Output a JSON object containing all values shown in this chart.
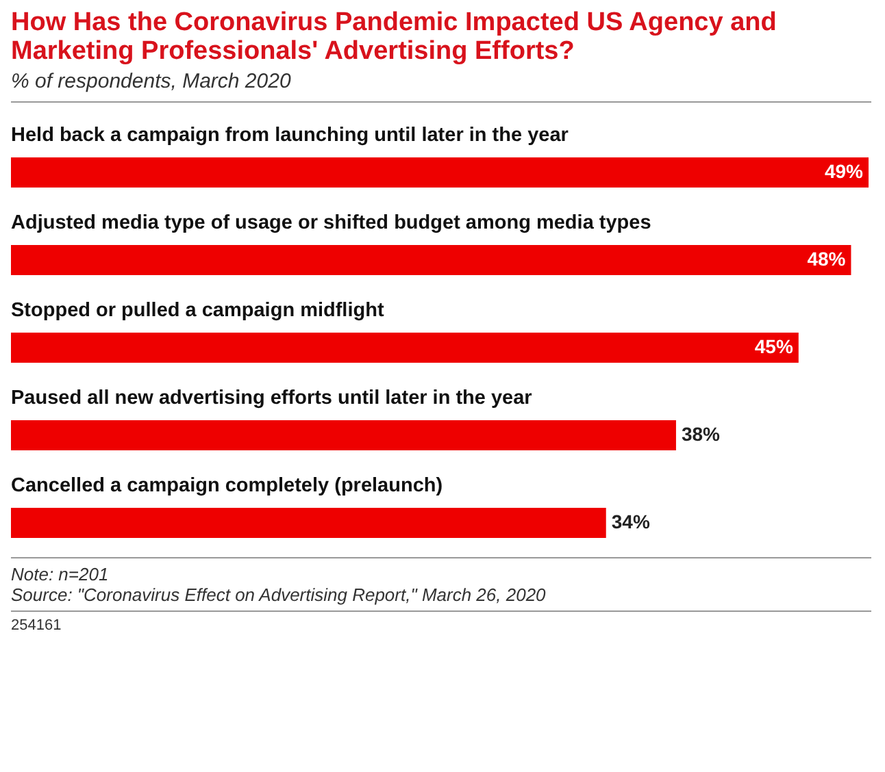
{
  "chart_data": {
    "type": "bar",
    "orientation": "horizontal",
    "title": "How Has the Coronavirus Pandemic Impacted US Agency and Marketing Professionals' Advertising Efforts?",
    "subtitle": "% of respondents, March 2020",
    "categories": [
      "Held back a campaign from launching until later in the year",
      "Adjusted media type of usage or shifted budget among media types",
      "Stopped or pulled a campaign midflight",
      "Paused all new advertising efforts until later in the year",
      "Cancelled a campaign completely (prelaunch)"
    ],
    "values": [
      49,
      48,
      45,
      38,
      34
    ],
    "value_labels": [
      "49%",
      "48%",
      "45%",
      "38%",
      "34%"
    ],
    "color": "#ee0000",
    "tick_labels": "y",
    "annotations": [
      "Note: n=201",
      "Source: \"Coronavirus Effect on Advertising Report,\" March 26, 2020",
      "254161"
    ]
  }
}
